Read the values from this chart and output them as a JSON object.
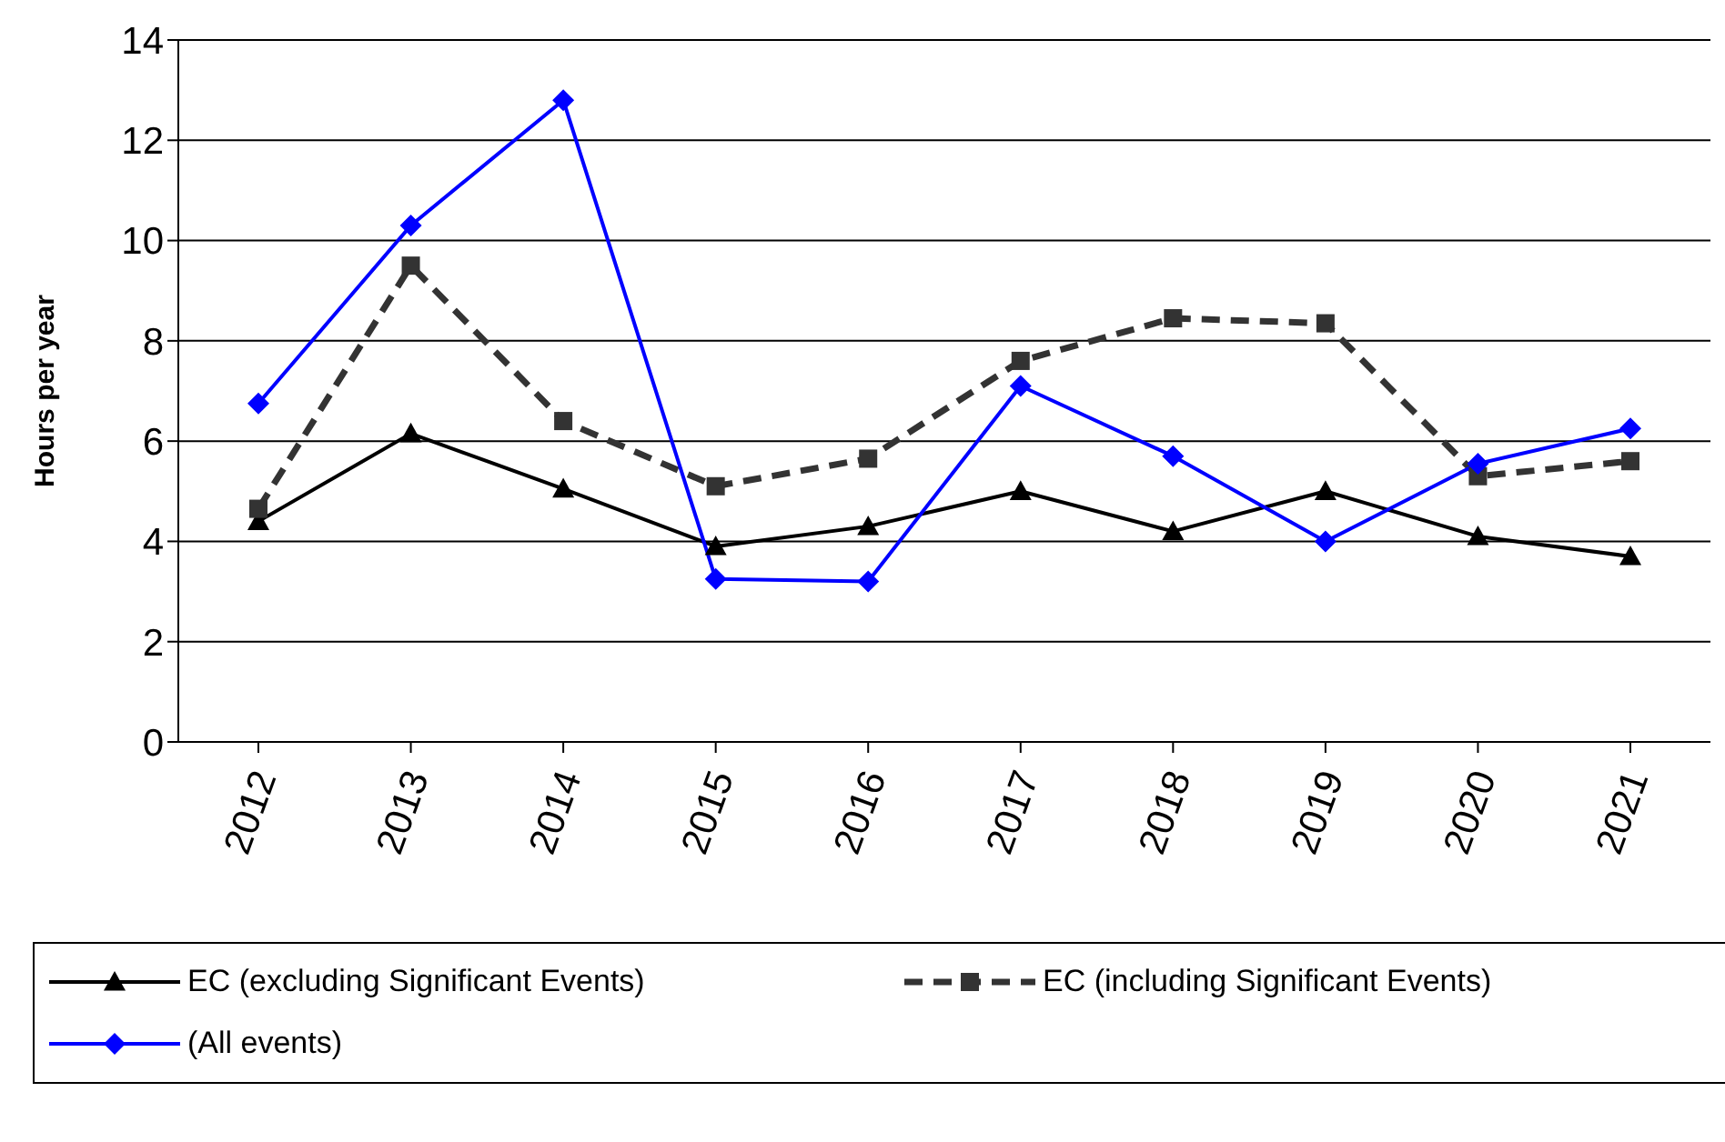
{
  "chart_data": {
    "type": "line",
    "ylabel": "Hours per year",
    "categories": [
      "2012",
      "2013",
      "2014",
      "2015",
      "2016",
      "2017",
      "2018",
      "2019",
      "2020",
      "2021"
    ],
    "ylim": [
      0,
      14
    ],
    "yticks": [
      0,
      2,
      4,
      6,
      8,
      10,
      12,
      14
    ],
    "grid": "y",
    "legend": "bottom",
    "series": [
      {
        "name": "EC (excluding Significant Events)",
        "color": "#000000",
        "marker": "triangle",
        "line_style": "solid",
        "values": [
          4.4,
          6.15,
          5.05,
          3.9,
          4.3,
          5.0,
          4.2,
          5.0,
          4.1,
          3.7
        ]
      },
      {
        "name": "EC (including Significant Events)",
        "color": "#333333",
        "marker": "square",
        "line_style": "dashed",
        "values": [
          4.65,
          9.5,
          6.4,
          5.1,
          5.65,
          7.6,
          8.45,
          8.35,
          5.3,
          5.6
        ]
      },
      {
        "name": "(All events)",
        "color": "#0000ff",
        "marker": "diamond",
        "line_style": "solid",
        "values": [
          6.75,
          10.3,
          12.8,
          3.25,
          3.2,
          7.1,
          5.7,
          4.0,
          5.55,
          6.25
        ]
      }
    ]
  }
}
